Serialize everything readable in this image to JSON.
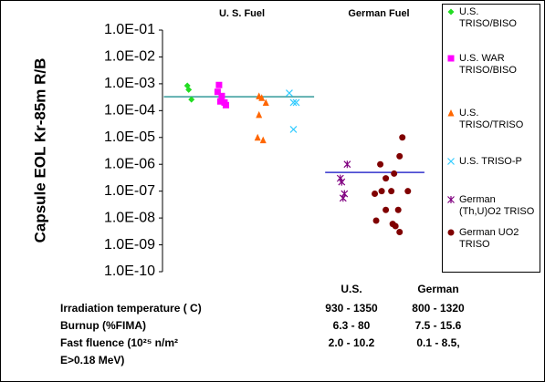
{
  "chart_data": {
    "type": "scatter",
    "y_label": "Capsule EOL Kr-85m R/B",
    "y_log": true,
    "annotations": [
      "U. S. Fuel",
      "German Fuel"
    ],
    "xlim": [
      0,
      10
    ],
    "ylim": [
      1e-10,
      0.1
    ],
    "yticks": [
      {
        "value": 0.1,
        "label": "1.0E-01"
      },
      {
        "value": 0.01,
        "label": "1.0E-02"
      },
      {
        "value": 0.001,
        "label": "1.0E-03"
      },
      {
        "value": 0.0001,
        "label": "1.0E-04"
      },
      {
        "value": 1e-05,
        "label": "1.0E-05"
      },
      {
        "value": 1e-06,
        "label": "1.0E-06"
      },
      {
        "value": 1e-07,
        "label": "1.0E-07"
      },
      {
        "value": 1e-08,
        "label": "1.0E-08"
      },
      {
        "value": 1e-09,
        "label": "1.0E-09"
      },
      {
        "value": 1e-10,
        "label": "1.0E-10"
      }
    ],
    "series": [
      {
        "name": "U.S. TRISO/BISO",
        "color": "#22dd22",
        "marker": "diamond",
        "x": [
          0.9,
          0.95,
          1.05
        ],
        "values": [
          0.00085,
          0.0006,
          0.00026
        ]
      },
      {
        "name": "U.S. WAR TRISO/BISO",
        "color": "#ff00ff",
        "marker": "square",
        "x": [
          2.05,
          2.0,
          2.15,
          2.1,
          2.25,
          2.3
        ],
        "values": [
          0.0009,
          0.0005,
          0.00035,
          0.00022,
          0.0002,
          0.00016
        ]
      },
      {
        "name": "U.S. TRISO/TRISO",
        "color": "#ff6600",
        "marker": "triangle",
        "x": [
          3.5,
          3.6,
          3.75,
          3.5,
          3.45,
          3.65
        ],
        "values": [
          0.00035,
          0.0003,
          0.0002,
          7e-05,
          1e-05,
          8e-06
        ]
      },
      {
        "name": "U.S. TRISO-P",
        "color": "#33ccff",
        "marker": "cross",
        "x": [
          4.6,
          4.75,
          4.85,
          4.75
        ],
        "values": [
          0.00045,
          0.0002,
          0.0002,
          2e-05
        ]
      },
      {
        "name": "German (Th,U)O2 TRISO",
        "color": "#800080",
        "marker": "asterisk",
        "x": [
          6.7,
          6.45,
          6.5,
          6.6,
          6.55
        ],
        "values": [
          1e-06,
          3e-07,
          2.2e-07,
          8e-08,
          5.5e-08
        ]
      },
      {
        "name": "German UO2 TRISO",
        "color": "#800000",
        "marker": "circle",
        "x": [
          8.7,
          8.6,
          7.9,
          8.4,
          8.1,
          8.9,
          7.95,
          8.3,
          7.7,
          8.1,
          8.55,
          7.75,
          8.35,
          8.45,
          8.6
        ],
        "values": [
          1e-05,
          2e-06,
          1e-06,
          4.5e-07,
          3e-07,
          1e-07,
          1e-07,
          1e-07,
          8e-08,
          2e-08,
          2e-08,
          8e-09,
          6e-09,
          5e-09,
          3e-09
        ]
      }
    ],
    "reference_lines": [
      {
        "color": "#339999",
        "value": 0.00033,
        "x": [
          0.05,
          5.5
        ]
      },
      {
        "color": "#3333cc",
        "value": 5e-07,
        "x": [
          5.9,
          9.5
        ]
      }
    ],
    "table": {
      "header": [
        "U.S.",
        "German"
      ],
      "rows": [
        [
          "Irradiation temperature ( C)",
          "930 - 1350",
          "800 - 1320"
        ],
        [
          "Burnup (%FIMA)",
          "6.3 - 80",
          "7.5 - 15.6"
        ],
        [
          "Fast fluence (10²⁵ n/m²",
          "2.0 - 10.2",
          "0.1 - 8.5,"
        ],
        [
          "E>0.18 MeV)"
        ]
      ]
    }
  }
}
